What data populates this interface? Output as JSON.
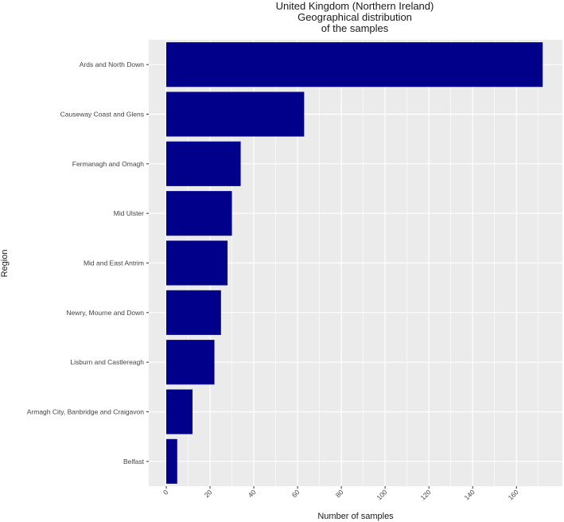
{
  "chart_data": {
    "type": "bar",
    "orientation": "horizontal",
    "title": [
      "United Kingdom (Northern Ireland)",
      "Geographical distribution",
      "of the samples"
    ],
    "xlabel": "Number of samples",
    "ylabel": "Region",
    "categories": [
      "Ards and North Down",
      "Causeway Coast and Glens",
      "Fermanagh and Omagh",
      "Mid Ulster",
      "Mid and East Antrim",
      "Newry, Mourne and Down",
      "Lisburn and Castlereagh",
      "Armagh City, Banbridge and Craigavon",
      "Belfast"
    ],
    "values": [
      172,
      63,
      34,
      30,
      28,
      25,
      22,
      12,
      5
    ],
    "xlim": [
      -8,
      181
    ],
    "xticks": [
      0,
      20,
      40,
      60,
      80,
      100,
      120,
      140,
      160
    ],
    "grid": true,
    "legend": "none",
    "colors": {
      "bar": "#00008b",
      "panel": "#ebebeb",
      "grid": "#ffffff"
    }
  }
}
